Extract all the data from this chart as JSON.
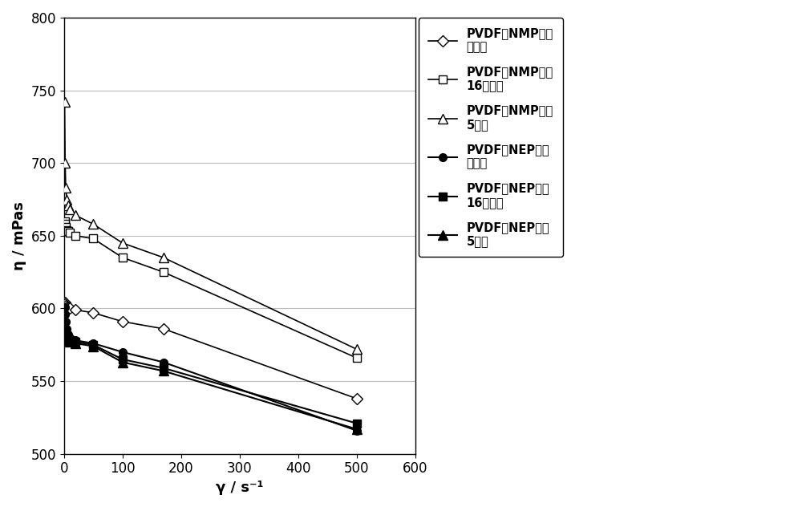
{
  "series": [
    {
      "label": "PVDF在NMP中，\n制备后",
      "x": [
        1,
        2,
        3,
        5,
        7,
        10,
        20,
        50,
        100,
        170,
        500
      ],
      "y": [
        604,
        603,
        602,
        601,
        600,
        600,
        599,
        597,
        591,
        586,
        538
      ],
      "color": "#000000",
      "marker": "D",
      "filled": false,
      "linewidth": 1.2,
      "markersize": 7
    },
    {
      "label": "PVDF在NMP中，\n16小时后",
      "x": [
        1,
        2,
        3,
        5,
        7,
        10,
        20,
        50,
        100,
        170,
        500
      ],
      "y": [
        660,
        658,
        656,
        654,
        653,
        652,
        650,
        648,
        635,
        625,
        566
      ],
      "color": "#000000",
      "marker": "s",
      "filled": false,
      "linewidth": 1.2,
      "markersize": 7
    },
    {
      "label": "PVDF在NMP中，\n5天后",
      "x": [
        1,
        2,
        3,
        5,
        7,
        10,
        20,
        50,
        100,
        170,
        500
      ],
      "y": [
        742,
        700,
        683,
        675,
        671,
        668,
        664,
        658,
        645,
        635,
        572
      ],
      "color": "#000000",
      "marker": "^",
      "filled": false,
      "linewidth": 1.2,
      "markersize": 8
    },
    {
      "label": "PVDF在NEP中，\n制备后",
      "x": [
        1,
        2,
        3,
        5,
        7,
        10,
        20,
        50,
        100,
        170,
        500
      ],
      "y": [
        601,
        596,
        591,
        586,
        582,
        580,
        578,
        576,
        570,
        563,
        516
      ],
      "color": "#000000",
      "marker": "o",
      "filled": true,
      "linewidth": 1.5,
      "markersize": 7
    },
    {
      "label": "PVDF在NEP中，\n16小时后",
      "x": [
        1,
        2,
        3,
        5,
        7,
        10,
        20,
        50,
        100,
        170,
        500
      ],
      "y": [
        584,
        582,
        581,
        580,
        579,
        578,
        577,
        575,
        565,
        559,
        521
      ],
      "color": "#000000",
      "marker": "s",
      "filled": true,
      "linewidth": 1.5,
      "markersize": 7
    },
    {
      "label": "PVDF在NEP中，\n5天后",
      "x": [
        1,
        2,
        3,
        5,
        7,
        10,
        20,
        50,
        100,
        170,
        500
      ],
      "y": [
        583,
        581,
        580,
        579,
        578,
        577,
        576,
        574,
        563,
        557,
        517
      ],
      "color": "#000000",
      "marker": "^",
      "filled": true,
      "linewidth": 1.5,
      "markersize": 8
    }
  ],
  "xlabel": "γ / s⁻¹",
  "ylabel": "η / mPas",
  "xlim": [
    0,
    600
  ],
  "ylim": [
    500,
    800
  ],
  "yticks": [
    500,
    550,
    600,
    650,
    700,
    750,
    800
  ],
  "xticks": [
    0,
    100,
    200,
    300,
    400,
    500,
    600
  ],
  "grid_color": "#bbbbbb",
  "background_color": "#ffffff",
  "legend_fontsize": 10.5,
  "axis_fontsize": 13,
  "tick_fontsize": 12
}
